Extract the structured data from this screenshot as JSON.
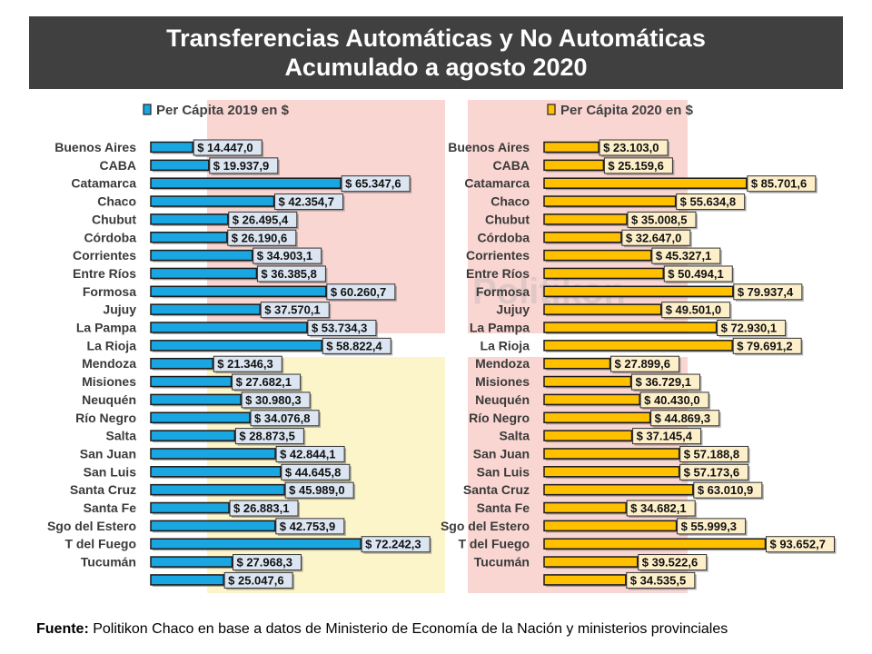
{
  "header": {
    "title_line1": "Transferencias Automáticas y No Automáticas",
    "title_line2": "Acumulado a agosto 2020"
  },
  "watermark": "Politikon",
  "source": {
    "label": "Fuente:",
    "text": " Politikon Chaco en base a datos de Ministerio de Economía de la Nación y ministerios provinciales"
  },
  "colors": {
    "series_2019": "#1aa6e0",
    "series_2019_label_bg": "#dce6f2",
    "series_2020": "#ffc000",
    "series_2020_label_bg": "#fdefc9",
    "band_red": "#f9d6d2",
    "band_yellow": "#fcf5c9",
    "title_bg": "#404040"
  },
  "chart_data": [
    {
      "type": "bar",
      "orientation": "horizontal",
      "legend": "Per Cápita 2019 en $",
      "legend_position": "top-left",
      "categories": [
        "Buenos Aires",
        "CABA",
        "Catamarca",
        "Chaco",
        "Chubut",
        "Córdoba",
        "Corrientes",
        "Entre Ríos",
        "Formosa",
        "Jujuy",
        "La Pampa",
        "La Rioja",
        "Mendoza",
        "Misiones",
        "Neuquén",
        "Río Negro",
        "Salta",
        "San Juan",
        "San Luis",
        "Santa Cruz",
        "Santa Fe",
        "Sgo del Estero",
        "T del Fuego",
        "Tucumán",
        ""
      ],
      "values": [
        14447.0,
        19937.9,
        65347.6,
        42354.7,
        26495.4,
        26190.6,
        34903.1,
        36385.8,
        60260.7,
        37570.1,
        53734.3,
        58822.4,
        21346.3,
        27682.1,
        30980.3,
        34076.8,
        28873.5,
        42844.1,
        44645.8,
        45989.0,
        26883.1,
        42753.9,
        72242.3,
        27968.3,
        25047.6
      ],
      "value_labels": [
        "$ 14.447,0",
        "$ 19.937,9",
        "$ 65.347,6",
        "$ 42.354,7",
        "$ 26.495,4",
        "$ 26.190,6",
        "$ 34.903,1",
        "$ 36.385,8",
        "$ 60.260,7",
        "$ 37.570,1",
        "$ 53.734,3",
        "$ 58.822,4",
        "$ 21.346,3",
        "$ 27.682,1",
        "$ 30.980,3",
        "$ 34.076,8",
        "$ 28.873,5",
        "$ 42.844,1",
        "$ 44.645,8",
        "$ 45.989,0",
        "$ 26.883,1",
        "$ 42.753,9",
        "$ 72.242,3",
        "$ 27.968,3",
        "$ 25.047,6"
      ],
      "xlim": [
        0,
        95000
      ],
      "grid": false
    },
    {
      "type": "bar",
      "orientation": "horizontal",
      "legend": "Per Cápita 2020 en $",
      "legend_position": "top-left",
      "categories": [
        "Buenos Aires",
        "CABA",
        "Catamarca",
        "Chaco",
        "Chubut",
        "Córdoba",
        "Corrientes",
        "Entre Ríos",
        "Formosa",
        "Jujuy",
        "La Pampa",
        "La Rioja",
        "Mendoza",
        "Misiones",
        "Neuquén",
        "Río Negro",
        "Salta",
        "San Juan",
        "San Luis",
        "Santa Cruz",
        "Santa Fe",
        "Sgo del Estero",
        "T del Fuego",
        "Tucumán",
        ""
      ],
      "values": [
        23103.0,
        25159.6,
        85701.6,
        55634.8,
        35008.5,
        32647.0,
        45327.1,
        50494.1,
        79937.4,
        49501.0,
        72930.1,
        79691.2,
        27899.6,
        36729.1,
        40430.0,
        44869.3,
        37145.4,
        57188.8,
        57173.6,
        63010.9,
        34682.1,
        55999.3,
        93652.7,
        39522.6,
        34535.5
      ],
      "value_labels": [
        "$ 23.103,0",
        "$ 25.159,6",
        "$ 85.701,6",
        "$ 55.634,8",
        "$ 35.008,5",
        "$ 32.647,0",
        "$ 45.327,1",
        "$ 50.494,1",
        "$ 79.937,4",
        "$ 49.501,0",
        "$ 72.930,1",
        "$ 79.691,2",
        "$ 27.899,6",
        "$ 36.729,1",
        "$ 40.430,0",
        "$ 44.869,3",
        "$ 37.145,4",
        "$ 57.188,8",
        "$ 57.173,6",
        "$ 63.010,9",
        "$ 34.682,1",
        "$ 55.999,3",
        "$ 93.652,7",
        "$ 39.522,6",
        "$ 34.535,5"
      ],
      "xlim": [
        0,
        95000
      ],
      "grid": false
    }
  ]
}
